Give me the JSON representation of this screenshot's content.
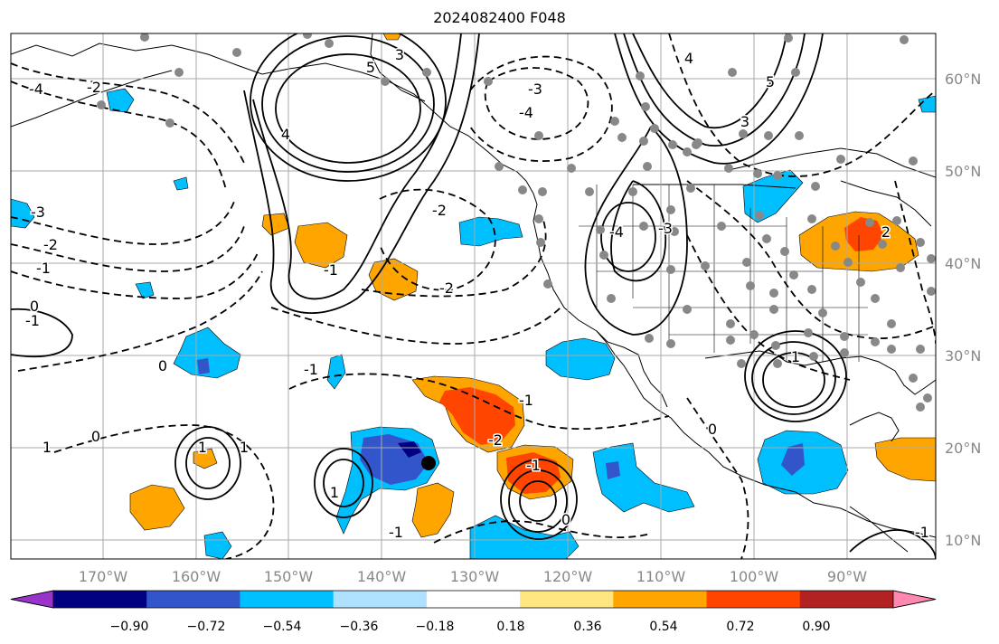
{
  "title": "2024082400 F048",
  "lon_ticks": [
    "170°W",
    "160°W",
    "150°W",
    "140°W",
    "130°W",
    "120°W",
    "110°W",
    "100°W",
    "90°W"
  ],
  "lat_ticks": [
    "60°N",
    "50°N",
    "40°N",
    "30°N",
    "20°N",
    "10°N"
  ],
  "colorbar": {
    "ticks": [
      "−0.90",
      "−0.72",
      "−0.54",
      "−0.36",
      "−0.18",
      "0.18",
      "0.36",
      "0.54",
      "0.72",
      "0.90"
    ],
    "colors": [
      "#9933cc",
      "#000080",
      "#3355cc",
      "#00bfff",
      "#aee0ff",
      "#ffffff",
      "#ffe680",
      "#ffa500",
      "#ff4500",
      "#b22222",
      "#ff88b0"
    ]
  },
  "contour_labels": [
    {
      "text": "3",
      "key": "c1"
    },
    {
      "text": "5",
      "key": "c2"
    },
    {
      "text": "4",
      "key": "c3"
    },
    {
      "text": "-3",
      "key": "c4"
    },
    {
      "text": "-4",
      "key": "c5"
    },
    {
      "text": "-2",
      "key": "c6"
    },
    {
      "text": "4",
      "key": "c7"
    },
    {
      "text": "3",
      "key": "c8"
    },
    {
      "text": "5",
      "key": "c9"
    },
    {
      "text": "-4",
      "key": "c10"
    },
    {
      "text": "-3",
      "key": "c11"
    },
    {
      "text": "-2",
      "key": "c12"
    },
    {
      "text": "-1",
      "key": "c13"
    },
    {
      "text": "0",
      "key": "c14"
    },
    {
      "text": "1",
      "key": "c15"
    },
    {
      "text": "-2",
      "key": "c16"
    },
    {
      "text": "-1",
      "key": "c17"
    },
    {
      "text": "-1",
      "key": "c18"
    },
    {
      "text": "-2",
      "key": "c19"
    },
    {
      "text": "-1",
      "key": "c20"
    },
    {
      "text": "0",
      "key": "c21"
    },
    {
      "text": "-1",
      "key": "c22"
    },
    {
      "text": "0",
      "key": "c23"
    },
    {
      "text": "1",
      "key": "c24"
    },
    {
      "text": "-1",
      "key": "c25"
    },
    {
      "text": "1",
      "key": "c26"
    },
    {
      "text": "0",
      "key": "c27"
    },
    {
      "text": "-1",
      "key": "c28"
    },
    {
      "text": "1",
      "key": "c29"
    },
    {
      "text": "0",
      "key": "c30"
    },
    {
      "text": "-1",
      "key": "c31"
    },
    {
      "text": "-2",
      "key": "c32"
    },
    {
      "text": "-3",
      "key": "c33"
    },
    {
      "text": "-4",
      "key": "c34"
    },
    {
      "text": "1",
      "key": "c35"
    },
    {
      "text": "2",
      "key": "c36"
    }
  ]
}
